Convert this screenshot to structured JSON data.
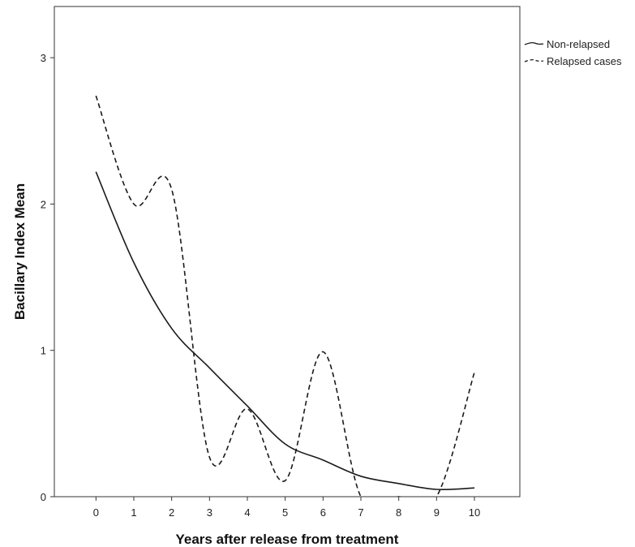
{
  "chart_data": {
    "type": "line",
    "title": "",
    "xlabel": "Years after release from treatment",
    "ylabel": "Bacillary Index Mean",
    "xlim": [
      -1.1,
      11.2
    ],
    "ylim": [
      0,
      3.35
    ],
    "x_ticks": [
      0,
      1,
      2,
      3,
      4,
      5,
      6,
      7,
      8,
      9,
      10
    ],
    "x_tick_labels": [
      "0",
      "1",
      "2",
      "3",
      "4",
      "5",
      "6",
      "7",
      "8",
      "9",
      "10"
    ],
    "y_ticks": [
      0,
      1,
      2,
      3
    ],
    "y_tick_labels": [
      "0",
      "1",
      "2",
      "3"
    ],
    "grid": false,
    "legend_position": "right-outside-top",
    "series": [
      {
        "name": "Non-relapsed",
        "line_style": "solid",
        "color": "#1a1a1a",
        "x": [
          0,
          1,
          2,
          3,
          4,
          5,
          6,
          7,
          8,
          9,
          10
        ],
        "y": [
          2.22,
          1.6,
          1.15,
          0.88,
          0.62,
          0.36,
          0.25,
          0.14,
          0.09,
          0.05,
          0.06
        ]
      },
      {
        "name": "Relapsed cases",
        "line_style": "dashed",
        "color": "#1a1a1a",
        "x": [
          0,
          1,
          2,
          3,
          4,
          5,
          6,
          7,
          8,
          9,
          10
        ],
        "y": [
          2.74,
          2.0,
          2.1,
          0.27,
          0.6,
          0.11,
          0.99,
          0.0,
          0.0,
          0.0,
          0.85
        ]
      }
    ]
  }
}
